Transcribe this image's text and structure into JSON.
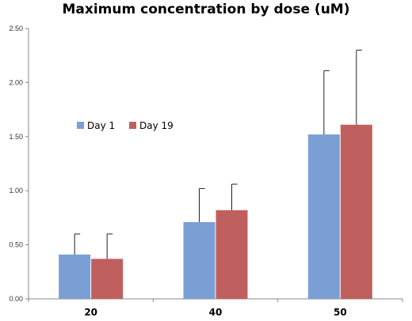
{
  "chart_data": {
    "type": "bar",
    "title": "Maximum concentration by dose (uM)",
    "xlabel": "",
    "ylabel": "",
    "categories": [
      "20",
      "40",
      "50"
    ],
    "ylim": [
      0,
      2.5
    ],
    "yticks": [
      "0.00",
      "0.50",
      "1.00",
      "1.50",
      "2.00",
      "2.50"
    ],
    "grid": false,
    "legend_position": "upper-left",
    "error_bars": "positive only",
    "series": [
      {
        "name": "Day 1",
        "color": "#7b9fd4",
        "values": [
          0.41,
          0.71,
          1.52
        ],
        "errors": [
          0.19,
          0.31,
          0.59
        ]
      },
      {
        "name": "Day 19",
        "color": "#c0605e",
        "values": [
          0.37,
          0.82,
          1.61
        ],
        "errors": [
          0.23,
          0.24,
          0.69
        ]
      }
    ]
  }
}
